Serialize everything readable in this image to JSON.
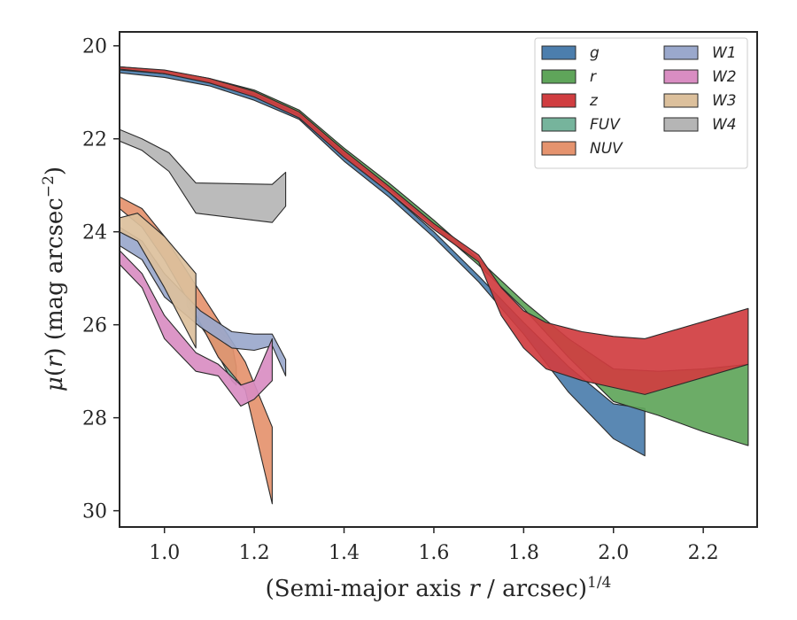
{
  "chart_data": {
    "type": "area",
    "xlabel": "(Semi-major axis r / arcsec)^1/4",
    "ylabel": "μ(r) (mag arcsec^−2)",
    "xlim": [
      0.9,
      2.32
    ],
    "ylim": [
      30.35,
      19.7
    ],
    "y_inverted": true,
    "x_ticks": [
      "1.0",
      "1.2",
      "1.4",
      "1.6",
      "1.8",
      "2.0",
      "2.2"
    ],
    "y_ticks": [
      "20",
      "22",
      "24",
      "26",
      "28",
      "30"
    ],
    "grid": false,
    "legend_position": "top-right",
    "series": [
      {
        "name": "g",
        "color": "#4c7ead",
        "x": [
          0.9,
          1.0,
          1.1,
          1.2,
          1.3,
          1.4,
          1.5,
          1.6,
          1.7,
          1.8,
          1.9,
          2.0,
          2.07
        ],
        "y_bright": [
          20.52,
          20.6,
          20.78,
          21.05,
          21.48,
          22.35,
          23.15,
          24.0,
          24.95,
          25.95,
          26.9,
          27.7,
          27.8
        ],
        "y_faint": [
          20.58,
          20.68,
          20.86,
          21.17,
          21.58,
          22.48,
          23.25,
          24.12,
          25.08,
          26.2,
          27.45,
          28.45,
          28.82
        ]
      },
      {
        "name": "r",
        "color": "#5fa55a",
        "x": [
          0.9,
          1.0,
          1.1,
          1.2,
          1.3,
          1.4,
          1.5,
          1.6,
          1.7,
          1.8,
          1.9,
          2.0,
          2.1,
          2.2,
          2.3
        ],
        "y_bright": [
          20.45,
          20.53,
          20.7,
          20.95,
          21.38,
          22.2,
          22.95,
          23.75,
          24.6,
          25.5,
          26.3,
          26.95,
          27.0,
          26.95,
          26.85
        ],
        "y_faint": [
          20.5,
          20.6,
          20.78,
          21.05,
          21.48,
          22.32,
          23.08,
          23.88,
          24.72,
          25.65,
          26.7,
          27.65,
          27.95,
          28.3,
          28.6
        ]
      },
      {
        "name": "z",
        "color": "#d03d40",
        "x": [
          0.9,
          1.0,
          1.1,
          1.2,
          1.3,
          1.4,
          1.5,
          1.6,
          1.7,
          1.75,
          1.8,
          1.85,
          1.93,
          2.0,
          2.07,
          2.3
        ],
        "y_bright": [
          20.45,
          20.52,
          20.7,
          20.98,
          21.42,
          22.25,
          23.02,
          23.82,
          24.5,
          25.2,
          25.7,
          25.95,
          26.15,
          26.25,
          26.3,
          25.65
        ],
        "y_faint": [
          20.5,
          20.6,
          20.8,
          21.1,
          21.55,
          22.4,
          23.15,
          23.95,
          24.65,
          25.8,
          26.5,
          26.95,
          27.2,
          27.35,
          27.5,
          26.85
        ]
      },
      {
        "name": "FUV",
        "color": "#76b49c",
        "x": [
          1.05,
          1.1,
          1.15,
          1.16
        ],
        "y_bright": [
          25.4,
          25.9,
          26.4,
          26.9
        ],
        "y_faint": [
          25.6,
          26.3,
          27.2,
          27.3
        ]
      },
      {
        "name": "NUV",
        "color": "#e5936e",
        "x": [
          0.9,
          0.95,
          1.0,
          1.06,
          1.12,
          1.18,
          1.24
        ],
        "y_bright": [
          23.25,
          23.5,
          24.1,
          25.0,
          25.9,
          26.8,
          28.2
        ],
        "y_faint": [
          23.5,
          23.9,
          24.6,
          25.6,
          26.7,
          27.4,
          29.85
        ]
      },
      {
        "name": "W1",
        "color": "#9aa8cc",
        "x": [
          0.9,
          0.95,
          1.0,
          1.08,
          1.15,
          1.2,
          1.24,
          1.27
        ],
        "y_bright": [
          23.9,
          24.2,
          24.9,
          25.7,
          26.15,
          26.2,
          26.2,
          26.75
        ],
        "y_faint": [
          24.3,
          24.6,
          25.4,
          26.05,
          26.5,
          26.55,
          26.45,
          27.1
        ]
      },
      {
        "name": "W2",
        "color": "#d98dc2",
        "x": [
          0.9,
          0.95,
          1.0,
          1.07,
          1.12,
          1.17,
          1.2,
          1.24
        ],
        "y_bright": [
          24.4,
          24.9,
          25.8,
          26.6,
          26.85,
          27.3,
          27.2,
          26.3
        ],
        "y_faint": [
          24.7,
          25.2,
          26.3,
          27.0,
          27.1,
          27.75,
          27.6,
          27.2
        ]
      },
      {
        "name": "W3",
        "color": "#dcc09c",
        "x": [
          0.9,
          0.94,
          1.0,
          1.07
        ],
        "y_bright": [
          23.7,
          23.6,
          24.1,
          24.9
        ],
        "y_faint": [
          24.0,
          24.2,
          25.2,
          26.5
        ]
      },
      {
        "name": "W4",
        "color": "#b5b5b5",
        "x": [
          0.9,
          0.95,
          1.01,
          1.07,
          1.24,
          1.27
        ],
        "y_bright": [
          21.8,
          22.0,
          22.3,
          22.95,
          22.98,
          22.72
        ],
        "y_faint": [
          22.05,
          22.25,
          22.7,
          23.6,
          23.8,
          23.45
        ]
      }
    ]
  }
}
